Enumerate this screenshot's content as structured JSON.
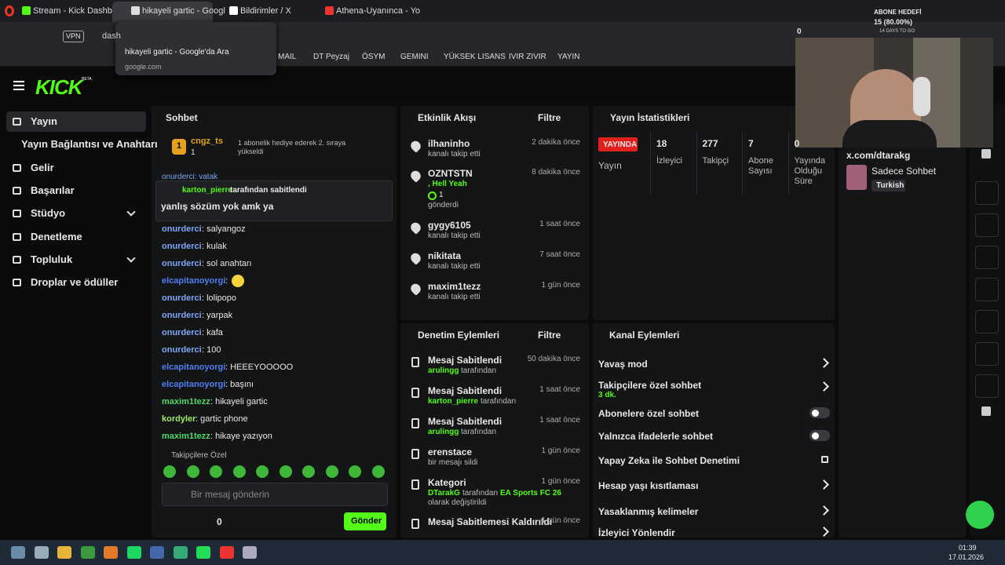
{
  "browser": {
    "tabs": [
      "Stream - Kick Dashboard",
      "hikayeli gartic - Googl",
      "Bildirimler / X",
      "Athena-Uyanınca - Yo"
    ],
    "tooltip": {
      "title": "hikayeli gartic - Google'da Ara",
      "url": "google.com"
    },
    "vpn": "VPN",
    "address": "dash",
    "bookmarks": [
      "MAIL",
      "DT Peyzaj",
      "ÖSYM",
      "GEMINI",
      "YÜKSEK LISANS",
      "IVIR ZIVIR",
      "YAYIN"
    ]
  },
  "overlay": {
    "title": "ABONE HEDEFİ",
    "progress": "15 (80.00%)",
    "days": "14 DAYS TO GO",
    "count": "0"
  },
  "header": {
    "logo": "KICK",
    "badge": "BETA"
  },
  "sidebar": [
    "Yayın",
    "Yayın Bağlantısı ve Anahtarı",
    "Gelir",
    "Başarılar",
    "Stüdyo",
    "Denetleme",
    "Topluluk",
    "Droplar ve ödüller"
  ],
  "chat": {
    "title": "Sohbet",
    "gifter": {
      "rank": "1",
      "name": "cngz_ts",
      "count": "1",
      "text": "1 abonelik hediye ederek 2. sıraya yükseldi"
    },
    "partial": "onurderci: yatak",
    "pinned": {
      "user": "karton_pierre",
      "by": "tarafından sabitlendi",
      "message": "yanlış sözüm yok amk ya"
    },
    "messages": [
      {
        "user": "onurderci",
        "text": ": salyangoz",
        "color": "#7fa6f5"
      },
      {
        "user": "onurderci",
        "text": ": kulak",
        "color": "#7fa6f5"
      },
      {
        "user": "onurderci",
        "text": ": sol anahtarı",
        "color": "#7fa6f5"
      },
      {
        "user": "elcapitanoyorgi",
        "text": ":",
        "color": "#4f7ff0"
      },
      {
        "user": "onurderci",
        "text": ": lolipopo",
        "color": "#7fa6f5"
      },
      {
        "user": "onurderci",
        "text": ": yarpak",
        "color": "#7fa6f5"
      },
      {
        "user": "onurderci",
        "text": ": kafa",
        "color": "#7fa6f5"
      },
      {
        "user": "onurderci",
        "text": ": 100",
        "color": "#7fa6f5"
      },
      {
        "user": "elcapitanoyorgi",
        "text": ": HEEEYOOOOO",
        "color": "#4f7ff0"
      },
      {
        "user": "elcapitanoyorgi",
        "text": ": başını",
        "color": "#4f7ff0"
      },
      {
        "user": "maxim1tezz",
        "text": ": hikayeli gartic",
        "color": "#53d769"
      },
      {
        "user": "kordyler",
        "text": ": gartic phone",
        "color": "#a2e86b"
      },
      {
        "user": "maxim1tezz",
        "text": ": hikaye yazıyon",
        "color": "#53d769"
      }
    ],
    "followers_only": "Takipçilere Özel",
    "placeholder": "Bir mesaj gönderin",
    "count": "0",
    "send": "Gönder"
  },
  "activity": {
    "title": "Etkinlik Akışı",
    "filter": "Filtre",
    "items": [
      {
        "name": "ilhaninho",
        "sub": "kanalı takip etti",
        "time": "2 dakika önce"
      },
      {
        "name": "OZNTSTN",
        "extra": ", Hell Yeah",
        "amount": "1",
        "sub": "gönderdi",
        "time": "8 dakika önce"
      },
      {
        "name": "gygy6105",
        "sub": "kanalı takip etti",
        "time": "1 saat önce"
      },
      {
        "name": "nikitata",
        "sub": "kanalı takip etti",
        "time": "7 saat önce"
      },
      {
        "name": "maxim1tezz",
        "sub": "kanalı takip etti",
        "time": "1 gün önce"
      }
    ]
  },
  "stats": {
    "title": "Yayın İstatistikleri",
    "live": "YAYINDA",
    "live_label": "Yayın",
    "items": [
      {
        "value": "18",
        "label": "İzleyici"
      },
      {
        "value": "277",
        "label": "Takipçi"
      },
      {
        "value": "7",
        "label": "Abone Sayısı"
      },
      {
        "value": "0",
        "label": "Yayında Olduğu Süre"
      }
    ]
  },
  "info": {
    "link": "x.com/dtarakg",
    "mode": "Sadece Sohbet",
    "language": "Turkish"
  },
  "moderation": {
    "title": "Denetim Eylemleri",
    "filter": "Filtre",
    "items": [
      {
        "title": "Mesaj Sabitlendi",
        "user": "arulingg",
        "rest": "tarafından",
        "time": "50 dakika önce"
      },
      {
        "title": "Mesaj Sabitlendi",
        "user": "karton_pierre",
        "rest": "tarafından",
        "time": "1 saat önce"
      },
      {
        "title": "Mesaj Sabitlendi",
        "user": "arulingg",
        "rest": "tarafından",
        "time": "1 saat önce"
      },
      {
        "title": "erenstace",
        "rest": "bir mesajı sildi",
        "time": "1 gün önce"
      },
      {
        "title": "Kategori",
        "user": "DTarakG",
        "rest": "tarafından",
        "target": "EA Sports FC 26",
        "end": "olarak değiştirildi",
        "time": "1 gün önce"
      },
      {
        "title": "Mesaj Sabitlemesi Kaldırıldı",
        "time": "1 gün önce"
      }
    ]
  },
  "channel": {
    "title": "Kanal Eylemleri",
    "items": [
      {
        "label": "Yavaş mod",
        "control": "arrow"
      },
      {
        "label": "Takipçilere özel sohbet",
        "note": "3 dk.",
        "control": "arrow"
      },
      {
        "label": "Abonelere özel sohbet",
        "control": "toggle"
      },
      {
        "label": "Yalnızca ifadelerle sohbet",
        "control": "toggle"
      },
      {
        "label": "Yapay Zeka ile Sohbet Denetimi",
        "control": "external"
      },
      {
        "label": "Hesap yaşı kısıtlaması",
        "control": "arrow"
      },
      {
        "label": "Yasaklanmış kelimeler",
        "control": "arrow"
      },
      {
        "label": "İzleyici Yönlendir",
        "control": "arrow"
      }
    ]
  },
  "taskbar": {
    "time": "01:39",
    "date": "17.01.2026"
  }
}
